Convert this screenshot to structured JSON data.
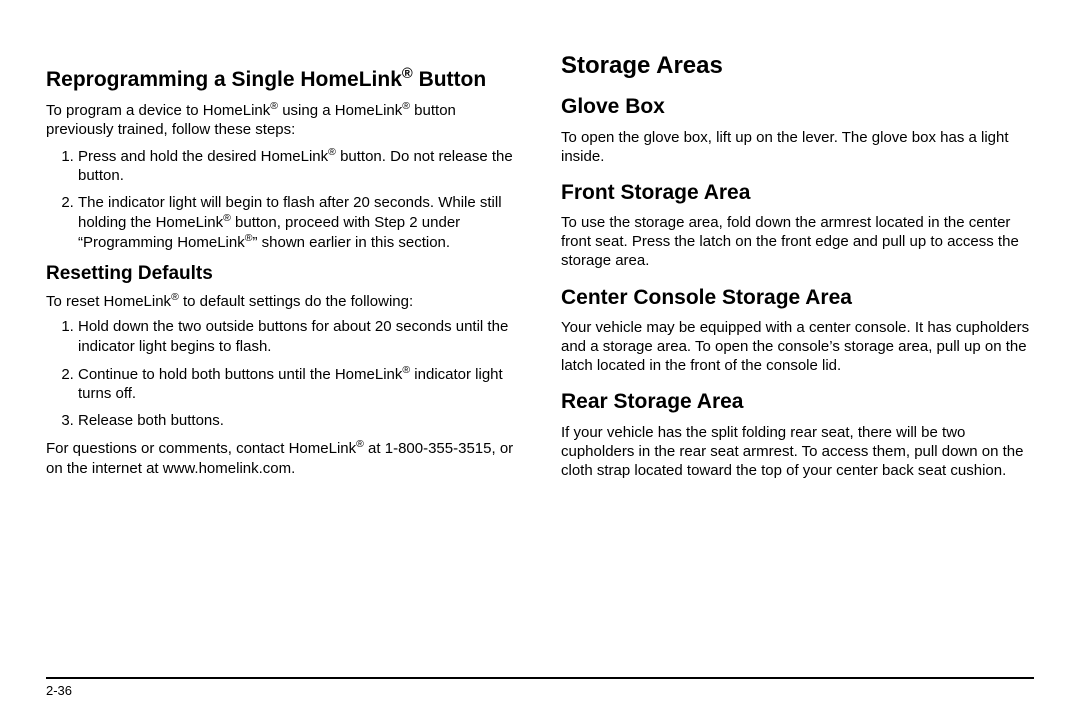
{
  "page_number": "2-36",
  "left": {
    "h2a": "Reprogramming a Single HomeLink® Button",
    "p1_a": "To program a device to HomeLink",
    "p1_b": " using a HomeLink",
    "p1_c": " button previously trained, follow these steps:",
    "li1_a": "Press and hold the desired HomeLink",
    "li1_b": " button. Do not release the button.",
    "li2_a": "The indicator light will begin to flash after 20 seconds. While still holding the HomeLink",
    "li2_b": " button, proceed with Step 2 under “Programming HomeLink",
    "li2_c": "” shown earlier in this section.",
    "h2b": "Resetting Defaults",
    "p2_a": "To reset HomeLink",
    "p2_b": " to default settings do the following:",
    "li3": "Hold down the two outside buttons for about 20 seconds until the indicator light begins to flash.",
    "li4_a": "Continue to hold both buttons until the HomeLink",
    "li4_b": " indicator light turns off.",
    "li5": "Release both buttons.",
    "p3_a": "For questions or comments, contact HomeLink",
    "p3_b": " at 1-800-355-3515, or on the internet at www.homelink.com."
  },
  "right": {
    "h1": "Storage Areas",
    "h2a": "Glove Box",
    "p1": "To open the glove box, lift up on the lever. The glove box has a light inside.",
    "h2b": "Front Storage Area",
    "p2": "To use the storage area, fold down the armrest located in the center front seat. Press the latch on the front edge and pull up to access the storage area.",
    "h2c": "Center Console Storage Area",
    "p3": "Your vehicle may be equipped with a center console. It has cupholders and a storage area. To open the console’s storage area, pull up on the latch located in the front of the console lid.",
    "h2d": "Rear Storage Area",
    "p4": "If your vehicle has the split folding rear seat, there will be two cupholders in the rear seat armrest. To access them, pull down on the cloth strap located toward the top of your center back seat cushion."
  },
  "reg": "®"
}
